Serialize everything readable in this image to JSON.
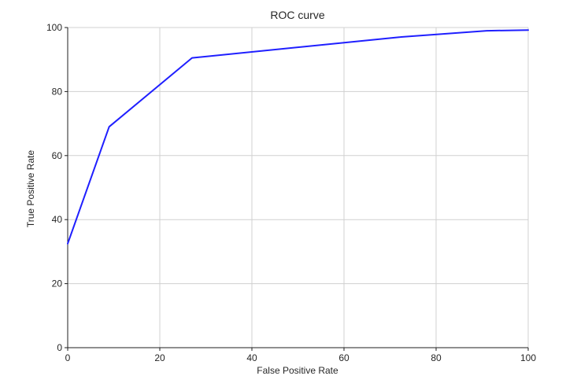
{
  "chart_data": {
    "type": "line",
    "title": "ROC curve",
    "xlabel": "False Positive Rate",
    "ylabel": "True Positive Rate",
    "xlim": [
      0,
      100
    ],
    "ylim": [
      0,
      100
    ],
    "xticks": [
      0,
      20,
      40,
      60,
      80,
      100
    ],
    "yticks": [
      0,
      20,
      40,
      60,
      80,
      100
    ],
    "grid": true,
    "series": [
      {
        "color": "#1f1fff",
        "x": [
          0,
          9,
          27,
          72,
          91,
          100
        ],
        "y": [
          32.5,
          69,
          90.5,
          97,
          99,
          99.2
        ]
      }
    ]
  }
}
